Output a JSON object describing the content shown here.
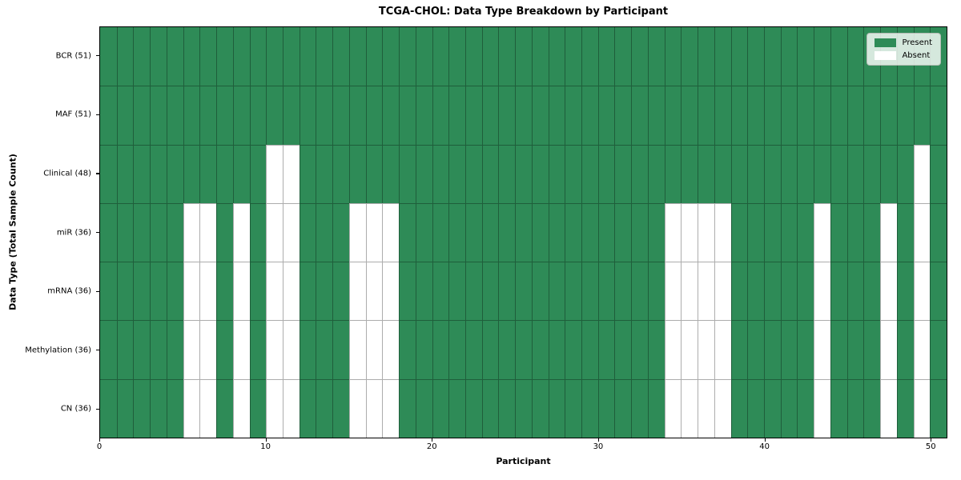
{
  "chart_data": {
    "type": "heatmap",
    "title": "TCGA-CHOL: Data Type Breakdown by Participant",
    "xlabel": "Participant",
    "ylabel": "Data Type (Total Sample Count)",
    "n_participants": 51,
    "x_ticks": [
      0,
      10,
      20,
      30,
      40,
      50
    ],
    "rows": [
      {
        "label": "BCR (51)",
        "present_count": 51,
        "absent_participants": []
      },
      {
        "label": "MAF (51)",
        "present_count": 51,
        "absent_participants": []
      },
      {
        "label": "Clinical (48)",
        "present_count": 48,
        "absent_participants": [
          10,
          11,
          49
        ]
      },
      {
        "label": "miR (36)",
        "present_count": 36,
        "absent_participants": [
          5,
          6,
          8,
          10,
          11,
          15,
          16,
          17,
          34,
          35,
          36,
          37,
          43,
          47,
          49
        ]
      },
      {
        "label": "mRNA (36)",
        "present_count": 36,
        "absent_participants": [
          5,
          6,
          8,
          10,
          11,
          15,
          16,
          17,
          34,
          35,
          36,
          37,
          43,
          47,
          49
        ]
      },
      {
        "label": "Methylation (36)",
        "present_count": 36,
        "absent_participants": [
          5,
          6,
          8,
          10,
          11,
          15,
          16,
          17,
          34,
          35,
          36,
          37,
          43,
          47,
          49
        ]
      },
      {
        "label": "CN (36)",
        "present_count": 36,
        "absent_participants": [
          5,
          6,
          8,
          10,
          11,
          15,
          16,
          17,
          34,
          35,
          36,
          37,
          43,
          47,
          49
        ]
      }
    ],
    "legend": [
      {
        "label": "Present",
        "color": "#2e8b57"
      },
      {
        "label": "Absent",
        "color": "#ffffff"
      }
    ],
    "legend_position": "upper right",
    "colors": {
      "present": "#2e8b57",
      "absent": "#ffffff",
      "cell_edge": "rgba(0,0,0,0.32)",
      "spine": "#000000"
    },
    "grid": true
  }
}
